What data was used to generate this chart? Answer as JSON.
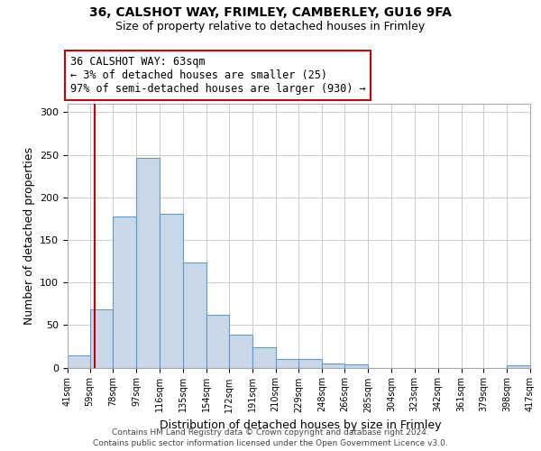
{
  "title_line1": "36, CALSHOT WAY, FRIMLEY, CAMBERLEY, GU16 9FA",
  "title_line2": "Size of property relative to detached houses in Frimley",
  "xlabel": "Distribution of detached houses by size in Frimley",
  "ylabel": "Number of detached properties",
  "bin_edges": [
    41,
    59,
    78,
    97,
    116,
    135,
    154,
    172,
    191,
    210,
    229,
    248,
    266,
    285,
    304,
    323,
    342,
    361,
    379,
    398,
    417
  ],
  "bar_heights": [
    14,
    68,
    178,
    246,
    181,
    123,
    62,
    39,
    24,
    10,
    10,
    5,
    4,
    0,
    0,
    0,
    0,
    0,
    0,
    3
  ],
  "bar_color": "#c8d8e8",
  "bar_edge_color": "#5b9bd5",
  "property_line_x": 63,
  "property_line_color": "#cc0000",
  "ylim": [
    0,
    310
  ],
  "yticks": [
    0,
    50,
    100,
    150,
    200,
    250,
    300
  ],
  "annotation_text": "36 CALSHOT WAY: 63sqm\n← 3% of detached houses are smaller (25)\n97% of semi-detached houses are larger (930) →",
  "annotation_box_color": "#cc0000",
  "footer_line1": "Contains HM Land Registry data © Crown copyright and database right 2024.",
  "footer_line2": "Contains public sector information licensed under the Open Government Licence v3.0.",
  "background_color": "#ffffff",
  "grid_color": "#cccccc",
  "title_fontsize": 10,
  "subtitle_fontsize": 9,
  "ylabel_fontsize": 9,
  "xlabel_fontsize": 9,
  "annot_fontsize": 8.5,
  "footer_fontsize": 6.5
}
